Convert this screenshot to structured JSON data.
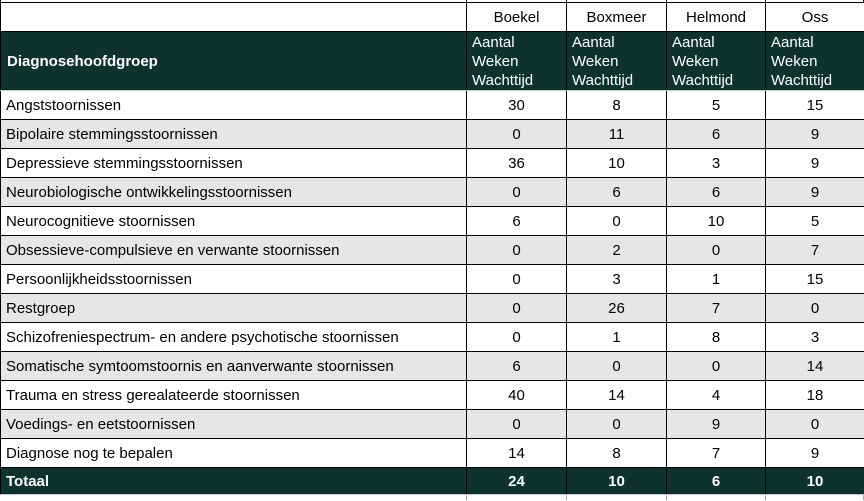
{
  "colors": {
    "header_green": "#0e332d",
    "alt_row_gray": "#e6e6e6",
    "grid_black": "#000000",
    "light_divider": "#c8c8c8",
    "header_text": "#ffffff",
    "body_text": "#000000"
  },
  "table": {
    "corner_label": "",
    "cities": [
      "Boekel",
      "Boxmeer",
      "Helmond",
      "Oss"
    ],
    "group_header": "Diagnosehoofdgroep",
    "measure_header": "Aantal\nWeken\nWachttijd",
    "rows": [
      {
        "label": "Angststoornissen",
        "values": [
          "30",
          "8",
          "5",
          "15"
        ]
      },
      {
        "label": "Bipolaire stemmingsstoornissen",
        "values": [
          "0",
          "11",
          "6",
          "9"
        ]
      },
      {
        "label": "Depressieve stemmingsstoornissen",
        "values": [
          "36",
          "10",
          "3",
          "9"
        ]
      },
      {
        "label": "Neurobiologische ontwikkelingsstoornissen",
        "values": [
          "0",
          "6",
          "6",
          "9"
        ]
      },
      {
        "label": "Neurocognitieve stoornissen",
        "values": [
          "6",
          "0",
          "10",
          "5"
        ]
      },
      {
        "label": "Obsessieve-compulsieve en verwante stoornissen",
        "values": [
          "0",
          "2",
          "0",
          "7"
        ]
      },
      {
        "label": "Persoonlijkheidsstoornissen",
        "values": [
          "0",
          "3",
          "1",
          "15"
        ]
      },
      {
        "label": "Restgroep",
        "values": [
          "0",
          "26",
          "7",
          "0"
        ]
      },
      {
        "label": "Schizofreniespectrum- en andere psychotische stoornissen",
        "values": [
          "0",
          "1",
          "8",
          "3"
        ]
      },
      {
        "label": "Somatische symtoomstoornis en aanverwante stoornissen",
        "values": [
          "6",
          "0",
          "0",
          "14"
        ]
      },
      {
        "label": "Trauma en stress gerealateerde stoornissen",
        "values": [
          "40",
          "14",
          "4",
          "18"
        ]
      },
      {
        "label": "Voedings- en eetstoornissen",
        "values": [
          "0",
          "0",
          "9",
          "0"
        ]
      },
      {
        "label": "Diagnose nog te bepalen",
        "values": [
          "14",
          "8",
          "7",
          "9"
        ]
      }
    ],
    "total": {
      "label": "Totaal",
      "values": [
        "24",
        "10",
        "6",
        "10"
      ]
    }
  }
}
